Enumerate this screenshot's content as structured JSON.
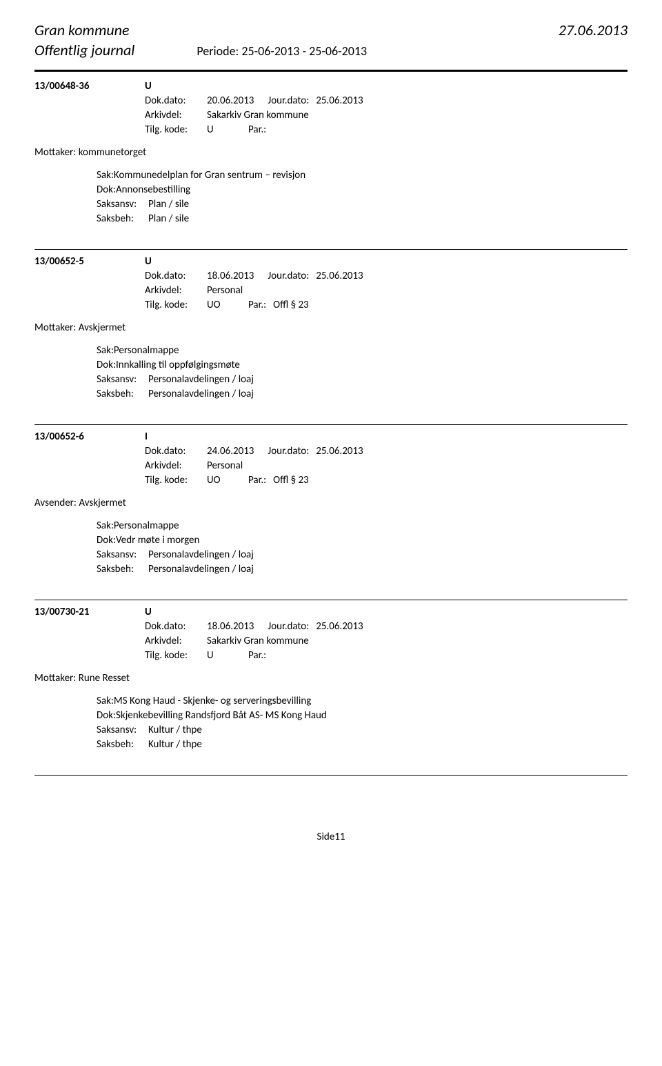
{
  "header": {
    "title": "Gran kommune",
    "date": "27.06.2013",
    "subtitle": "Offentlig journal",
    "period": "Periode: 25-06-2013 - 25-06-2013"
  },
  "entries": [
    {
      "id": "13/00648-36",
      "type": "U",
      "dokdato_label": "Dok.dato:",
      "dokdato": "20.06.2013",
      "jourdato_label": "Jour.dato:",
      "jourdato": "25.06.2013",
      "arkivdel_label": "Arkivdel:",
      "arkivdel": "Sakarkiv Gran kommune",
      "tilgkode_label": "Tilg. kode:",
      "tilgkode": "U",
      "par_label": "Par.:",
      "par": "",
      "recipient_label": "Mottaker:",
      "recipient": "kommunetorget",
      "sak_label": "Sak:",
      "sak": "Kommunedelplan for Gran sentrum – revisjon",
      "dok_label": "Dok:",
      "dok": "Annonsebestilling",
      "saksansv_label": "Saksansv:",
      "saksansv": "Plan / sile",
      "saksbeh_label": "Saksbeh:",
      "saksbeh": "Plan / sile"
    },
    {
      "id": "13/00652-5",
      "type": "U",
      "dokdato_label": "Dok.dato:",
      "dokdato": "18.06.2013",
      "jourdato_label": "Jour.dato:",
      "jourdato": "25.06.2013",
      "arkivdel_label": "Arkivdel:",
      "arkivdel": "Personal",
      "tilgkode_label": "Tilg. kode:",
      "tilgkode": "UO",
      "par_label": "Par.:",
      "par": "Offl § 23",
      "recipient_label": "Mottaker:",
      "recipient": "Avskjermet",
      "sak_label": "Sak:",
      "sak": "Personalmappe",
      "dok_label": "Dok:",
      "dok": "Innkalling til oppfølgingsmøte",
      "saksansv_label": "Saksansv:",
      "saksansv": "Personalavdelingen / loaj",
      "saksbeh_label": "Saksbeh:",
      "saksbeh": "Personalavdelingen / loaj"
    },
    {
      "id": "13/00652-6",
      "type": "I",
      "dokdato_label": "Dok.dato:",
      "dokdato": "24.06.2013",
      "jourdato_label": "Jour.dato:",
      "jourdato": "25.06.2013",
      "arkivdel_label": "Arkivdel:",
      "arkivdel": "Personal",
      "tilgkode_label": "Tilg. kode:",
      "tilgkode": "UO",
      "par_label": "Par.:",
      "par": "Offl § 23",
      "recipient_label": "Avsender:",
      "recipient": "Avskjermet",
      "sak_label": "Sak:",
      "sak": "Personalmappe",
      "dok_label": "Dok:",
      "dok": "Vedr møte i morgen",
      "saksansv_label": "Saksansv:",
      "saksansv": "Personalavdelingen / loaj",
      "saksbeh_label": "Saksbeh:",
      "saksbeh": "Personalavdelingen / loaj"
    },
    {
      "id": "13/00730-21",
      "type": "U",
      "dokdato_label": "Dok.dato:",
      "dokdato": "18.06.2013",
      "jourdato_label": "Jour.dato:",
      "jourdato": "25.06.2013",
      "arkivdel_label": "Arkivdel:",
      "arkivdel": "Sakarkiv Gran kommune",
      "tilgkode_label": "Tilg. kode:",
      "tilgkode": "U",
      "par_label": "Par.:",
      "par": "",
      "recipient_label": "Mottaker:",
      "recipient": "Rune Resset",
      "sak_label": "Sak:",
      "sak": "MS Kong Haud - Skjenke- og serveringsbevilling",
      "dok_label": "Dok:",
      "dok": "Skjenkebevilling Randsfjord Båt AS- MS Kong Haud",
      "saksansv_label": "Saksansv:",
      "saksansv": "Kultur / thpe",
      "saksbeh_label": "Saksbeh:",
      "saksbeh": "Kultur / thpe"
    }
  ],
  "page_number": "Side11"
}
